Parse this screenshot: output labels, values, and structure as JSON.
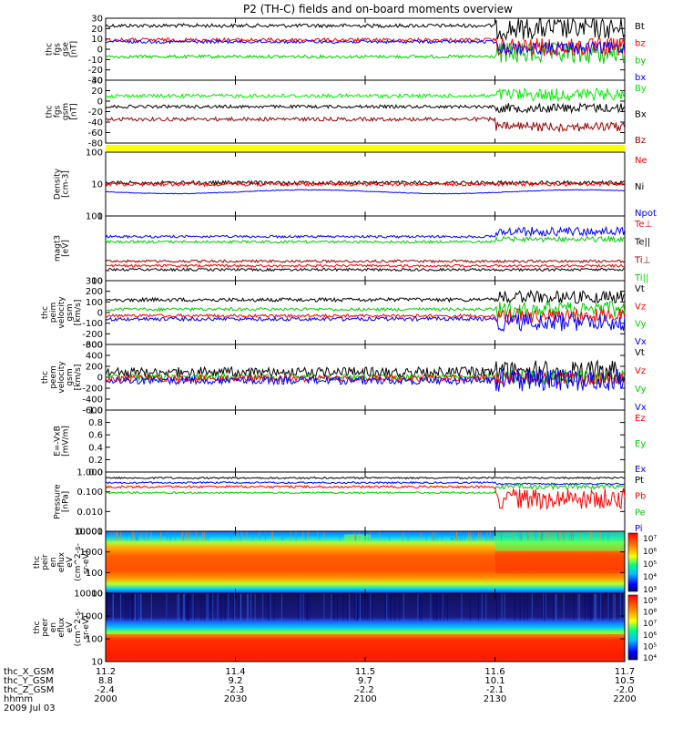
{
  "title": "P2 (TH-C) fields and on-board moments overview",
  "footer": {
    "labels": [
      "thc_X_GSM",
      "thc_Y_GSM",
      "thc_Z_GSM",
      "hhmm",
      "2009 Jul 03"
    ],
    "x_gsm": [
      "11.2",
      "11.4",
      "11.5",
      "11.6",
      "11.7"
    ],
    "y_gsm": [
      "8.8",
      "9.2",
      "9.7",
      "10.1",
      "10.5"
    ],
    "z_gsm": [
      "-2.4",
      "-2.3",
      "-2.2",
      "-2.1",
      "-2.0"
    ],
    "hhmm": [
      "2000",
      "2030",
      "2100",
      "2130",
      "2200"
    ]
  },
  "colors": {
    "black": "#000000",
    "red": "#ff0000",
    "green": "#00ee00",
    "blue": "#0000ff",
    "darkred": "#990000",
    "yellow": "#ffff00"
  },
  "chart_data": [
    {
      "type": "line",
      "ylabel": [
        "thc",
        "fgs",
        "gse",
        "[nT]"
      ],
      "yticks": [
        "30",
        "20",
        "10",
        "0",
        "-10",
        "-20",
        "-30"
      ],
      "ylim": [
        -30,
        30
      ],
      "legend": [
        {
          "name": "Bt",
          "color": "#000000"
        },
        {
          "name": "bz",
          "color": "#ff0000"
        },
        {
          "name": "by",
          "color": "#00cc00"
        },
        {
          "name": "bx",
          "color": "#0000ff"
        }
      ]
    },
    {
      "type": "line",
      "ylabel": [
        "thc",
        "fgs",
        "gsm",
        "[nT]"
      ],
      "yticks": [
        "40",
        "20",
        "0",
        "-20",
        "-40",
        "-60",
        "-80"
      ],
      "ylim": [
        -80,
        40
      ],
      "legend": [
        {
          "name": "By",
          "color": "#00ee00"
        },
        {
          "name": "Bx",
          "color": "#000000"
        },
        {
          "name": "Bz",
          "color": "#990000"
        }
      ]
    },
    {
      "type": "line",
      "ylabel": [
        "Density",
        "[cm-3]"
      ],
      "yticks": [
        "100",
        "10",
        "1"
      ],
      "scale": "log",
      "ylim": [
        1,
        150
      ],
      "legend": [
        {
          "name": "Ne",
          "color": "#ff0000"
        },
        {
          "name": "Ni",
          "color": "#000000"
        },
        {
          "name": "Npot",
          "color": "#0000ff"
        }
      ]
    },
    {
      "type": "line",
      "ylabel": [
        "magt3",
        "[eV]"
      ],
      "yticks": [
        "100",
        "10"
      ],
      "scale": "log",
      "ylim": [
        10,
        1000
      ],
      "legend": [
        {
          "name": "Te⊥",
          "color": "#ff0000"
        },
        {
          "name": "Te||",
          "color": "#000000"
        },
        {
          "name": "Ti⊥",
          "color": "#990000"
        },
        {
          "name": "Ti||",
          "color": "#00cc00"
        }
      ]
    },
    {
      "type": "line",
      "ylabel": [
        "thc",
        "peim",
        "velocity",
        "gsm",
        "[km/s]"
      ],
      "yticks": [
        "300",
        "200",
        "100",
        "0",
        "-100",
        "-200",
        "-300"
      ],
      "ylim": [
        -300,
        300
      ],
      "legend": [
        {
          "name": "Vt",
          "color": "#000000"
        },
        {
          "name": "Vz",
          "color": "#ff0000"
        },
        {
          "name": "Vy",
          "color": "#00cc00"
        },
        {
          "name": "Vx",
          "color": "#0000ff"
        }
      ]
    },
    {
      "type": "line",
      "ylabel": [
        "thc",
        "peem",
        "velocity",
        "gsm",
        "[km/s]"
      ],
      "yticks": [
        "600",
        "400",
        "200",
        "0",
        "-200",
        "-400",
        "-600"
      ],
      "ylim": [
        -600,
        600
      ],
      "legend": [
        {
          "name": "Vt",
          "color": "#000000"
        },
        {
          "name": "Vz",
          "color": "#ff0000"
        },
        {
          "name": "Vy",
          "color": "#00cc00"
        },
        {
          "name": "Vx",
          "color": "#0000ff"
        }
      ]
    },
    {
      "type": "line",
      "ylabel": [
        "E=-VxB",
        "[mV/m]"
      ],
      "yticks": [
        "1.0",
        "0.8",
        "0.6",
        "0.4",
        "0.2",
        "0.0"
      ],
      "ylim": [
        0,
        1
      ],
      "legend": [
        {
          "name": "Ez",
          "color": "#ff0000"
        },
        {
          "name": "Ey",
          "color": "#00cc00"
        },
        {
          "name": "Ex",
          "color": "#0000ff"
        }
      ]
    },
    {
      "type": "line",
      "ylabel": [
        "Pressure",
        "[nPa]"
      ],
      "yticks": [
        "1.000",
        "0.100",
        "0.010",
        "0.001"
      ],
      "scale": "log",
      "ylim": [
        0.001,
        2
      ],
      "legend": [
        {
          "name": "Pt",
          "color": "#000000"
        },
        {
          "name": "Pb",
          "color": "#ff0000"
        },
        {
          "name": "Pe",
          "color": "#00cc00"
        },
        {
          "name": "Pi",
          "color": "#0000ff"
        }
      ]
    },
    {
      "type": "heatmap",
      "ylabel": [
        "thc",
        "peir",
        "en",
        "eflux",
        "eV",
        "(cm^2-s-",
        "sr-eV)"
      ],
      "yticks": [
        "10000",
        "1000",
        "100",
        "10"
      ],
      "scale": "log",
      "colorbar": [
        "10⁷",
        "10⁶",
        "10⁵",
        "10⁴",
        "10³"
      ]
    },
    {
      "type": "heatmap",
      "ylabel": [
        "thc",
        "peer",
        "en",
        "eflux",
        "eV",
        "(cm^2-s-",
        "sr-eV)"
      ],
      "yticks": [
        "10000",
        "1000",
        "100",
        "10"
      ],
      "scale": "log",
      "colorbar": [
        "10⁹",
        "10⁸",
        "10⁷",
        "10⁶",
        "10⁵",
        "10⁴"
      ]
    }
  ]
}
